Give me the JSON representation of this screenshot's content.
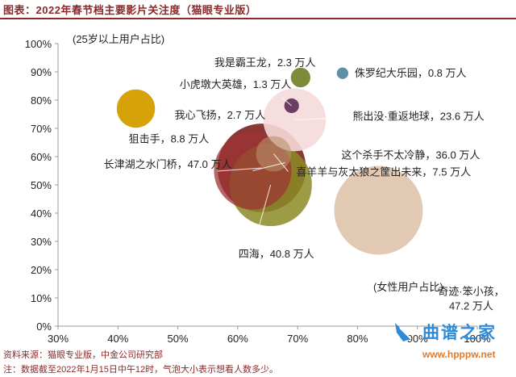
{
  "header": {
    "title": "图表：2022年春节档主要影片关注度（猫眼专业版）"
  },
  "footer": {
    "source": "资料来源：猫眼专业版，中金公司研究部",
    "note": "注：数据截至2022年1月15日中午12时，气泡大小表示想看人数多少。"
  },
  "watermark": {
    "title": "曲谱之家",
    "url": "www.hpppw.net"
  },
  "colors": {
    "title": "#8a2a2a",
    "axis": "#9a9a9a",
    "text": "#222222"
  },
  "chart_data": {
    "type": "bubble",
    "title": "",
    "xlabel": "(女性用户占比)",
    "ylabel": "(25岁以上用户占比)",
    "xlim": [
      30,
      100
    ],
    "ylim": [
      0,
      100
    ],
    "x_ticks": [
      "30%",
      "40%",
      "50%",
      "60%",
      "70%",
      "80%",
      "90%",
      "100%"
    ],
    "y_ticks": [
      "0%",
      "10%",
      "20%",
      "30%",
      "40%",
      "50%",
      "60%",
      "70%",
      "80%",
      "90%",
      "100%"
    ],
    "size_unit": "万人",
    "series": [
      {
        "name": "长津湖之水门桥",
        "label": "长津湖之水门桥，47.0 万人",
        "x": 64,
        "y": 56,
        "size": 47.0,
        "color": "#7e2120",
        "opacity": 0.9
      },
      {
        "name": "四海",
        "label": "四海，40.8 万人",
        "x": 65.5,
        "y": 50,
        "size": 40.8,
        "color": "#8a8b25",
        "opacity": 0.85
      },
      {
        "name": "奇迹·笨小孩",
        "label": "奇迹·笨小孩，47.2 万人",
        "x": 83.5,
        "y": 41,
        "size": 47.2,
        "color": "#dcc0a6",
        "opacity": 0.85
      },
      {
        "name": "熊出没·重返地球",
        "label": "熊出没·重返地球，23.6 万人",
        "x": 69.5,
        "y": 73,
        "size": 23.6,
        "color": "#f6dada",
        "opacity": 0.9
      },
      {
        "name": "这个杀手不太冷静",
        "label": "这个杀手不太冷静，36.0 万人",
        "x": 62.5,
        "y": 55,
        "size": 36.0,
        "color": "#9c3534",
        "opacity": 0.75
      },
      {
        "name": "喜羊羊与灰太狼之筐出未来",
        "label": "喜羊羊与灰太狼之筐出未来，7.5 万人",
        "x": 66,
        "y": 61,
        "size": 7.5,
        "color": "#b8916a",
        "opacity": 0.6
      },
      {
        "name": "狙击手",
        "label": "狙击手，8.8 万人",
        "x": 43,
        "y": 77,
        "size": 8.8,
        "color": "#d6a207",
        "opacity": 1
      },
      {
        "name": "我心飞扬",
        "label": "我心飞扬，2.7 万人",
        "x": 43,
        "y": 77.5,
        "size": 2.7,
        "color": "#e8b820",
        "opacity": 0
      },
      {
        "name": "小虎墩大英雄",
        "label": "小虎墩大英雄，1.3 万人",
        "x": 69,
        "y": 78,
        "size": 1.3,
        "color": "#6b3f63",
        "opacity": 1
      },
      {
        "name": "我是霸王龙",
        "label": "我是霸王龙，2.3 万人",
        "x": 70.5,
        "y": 88,
        "size": 2.3,
        "color": "#7e8b3a",
        "opacity": 1
      },
      {
        "name": "侏罗纪大乐园",
        "label": "侏罗纪大乐园，0.8 万人",
        "x": 77.5,
        "y": 89.5,
        "size": 0.8,
        "color": "#5f8fa5",
        "opacity": 1
      }
    ],
    "grid": false,
    "legend": "none"
  }
}
